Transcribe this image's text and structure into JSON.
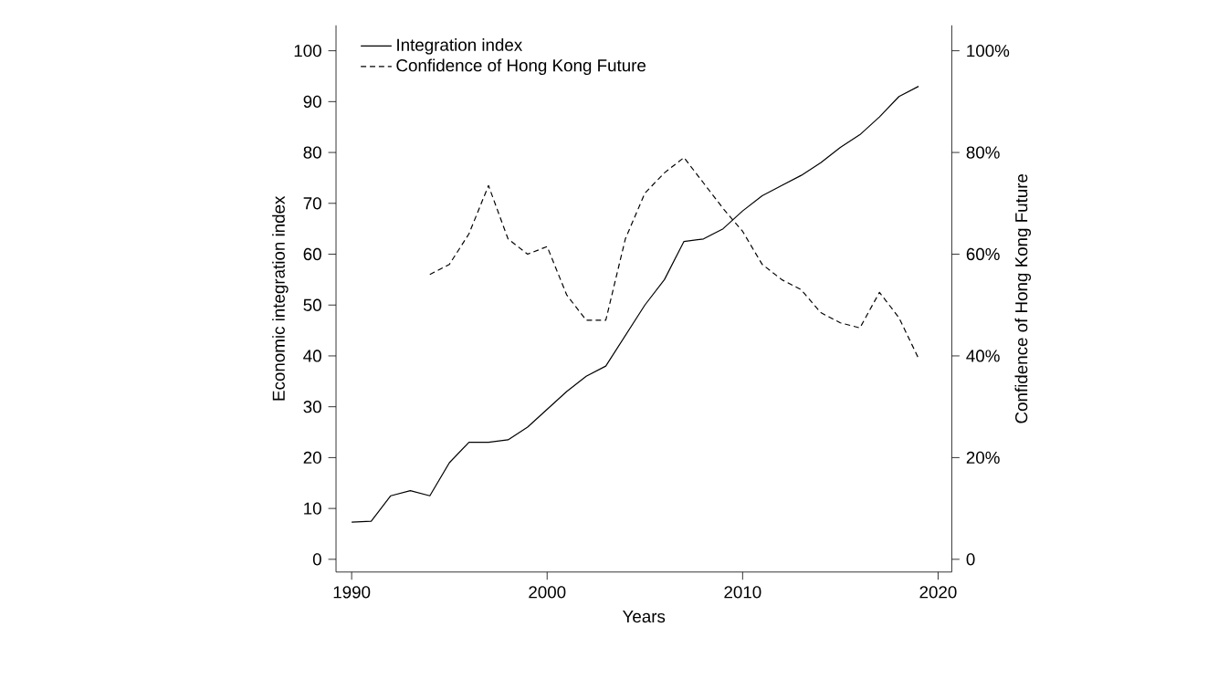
{
  "chart_data": {
    "type": "line",
    "xlabel": "Years",
    "ylabel": "Economic integration index",
    "y2label": "Confidence of Hong Kong Future",
    "xlim": [
      1989.2,
      2020.7
    ],
    "xticks": [
      1990,
      2000,
      2010,
      2020
    ],
    "ylim": [
      -2.5,
      105
    ],
    "yticks": [
      0,
      10,
      20,
      30,
      40,
      50,
      60,
      70,
      80,
      90,
      100
    ],
    "y2lim": [
      -2.5,
      105
    ],
    "y2ticks": [
      {
        "value": 0,
        "label": "0"
      },
      {
        "value": 20,
        "label": "20%"
      },
      {
        "value": 40,
        "label": "40%"
      },
      {
        "value": 60,
        "label": "60%"
      },
      {
        "value": 80,
        "label": "80%"
      },
      {
        "value": 100,
        "label": "100%"
      }
    ],
    "legend": "top left",
    "grid": false,
    "marker": "none",
    "series": [
      {
        "name": "Integration index",
        "color": "#000000",
        "line_style": "solid",
        "x": [
          1990,
          1991,
          1992,
          1993,
          1994,
          1995,
          1996,
          1997,
          1998,
          1999,
          2000,
          2001,
          2002,
          2003,
          2004,
          2005,
          2006,
          2007,
          2008,
          2009,
          2010,
          2011,
          2012,
          2013,
          2014,
          2015,
          2016,
          2017,
          2018,
          2019
        ],
        "values": [
          7.3,
          7.5,
          12.5,
          13.5,
          12.5,
          19,
          23,
          23,
          23.5,
          26,
          29.5,
          33,
          36,
          38,
          44,
          50,
          55,
          62.5,
          63,
          65,
          68.5,
          71.5,
          73.5,
          75.5,
          78,
          81,
          83.5,
          87,
          91,
          93
        ]
      },
      {
        "name": "Confidence of Hong Kong Future",
        "color": "#000000",
        "line_style": "dashed",
        "axis": "y2",
        "x": [
          1994,
          1995,
          1996,
          1997,
          1998,
          1999,
          2000,
          2001,
          2002,
          2003,
          2004,
          2005,
          2006,
          2007,
          2008,
          2009,
          2010,
          2011,
          2012,
          2013,
          2014,
          2015,
          2016,
          2017,
          2018,
          2019
        ],
        "values": [
          56,
          58,
          64,
          73.5,
          63,
          60,
          61.5,
          52,
          47,
          47,
          63,
          72,
          76,
          79,
          74,
          69,
          64.5,
          58,
          55,
          53,
          48.5,
          46.5,
          45.5,
          52.5,
          47.5,
          39.5
        ]
      }
    ]
  }
}
